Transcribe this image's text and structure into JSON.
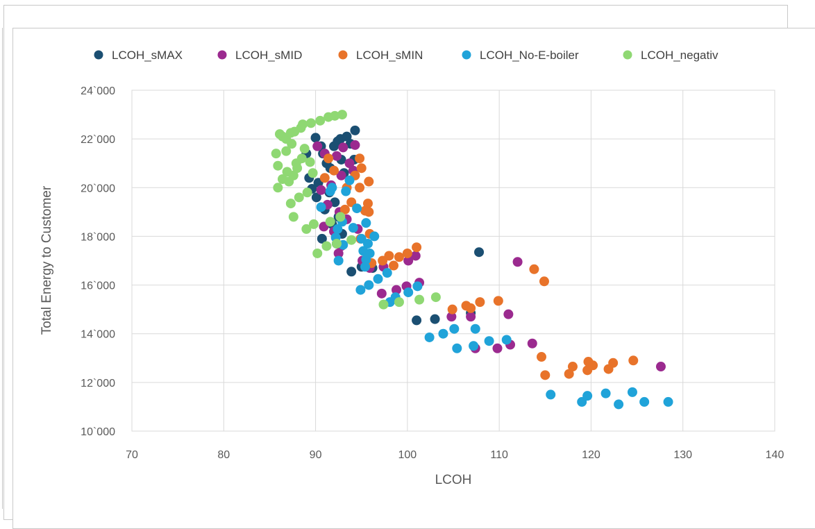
{
  "chart_data": {
    "type": "scatter",
    "xlabel": "LCOH",
    "ylabel": "Total Energy to Customer",
    "xlim": [
      70,
      140
    ],
    "ylim": [
      10000,
      24000
    ],
    "x_ticks": [
      {
        "value": 70,
        "label": "70"
      },
      {
        "value": 80,
        "label": "80"
      },
      {
        "value": 90,
        "label": "90"
      },
      {
        "value": 100,
        "label": "100"
      },
      {
        "value": 110,
        "label": "110"
      },
      {
        "value": 120,
        "label": "120"
      },
      {
        "value": 130,
        "label": "130"
      },
      {
        "value": 140,
        "label": "140"
      }
    ],
    "y_ticks": [
      {
        "value": 10000,
        "label": "10`000"
      },
      {
        "value": 12000,
        "label": "12`000"
      },
      {
        "value": 14000,
        "label": "14`000"
      },
      {
        "value": 16000,
        "label": "16`000"
      },
      {
        "value": 18000,
        "label": "18`000"
      },
      {
        "value": 20000,
        "label": "20`000"
      },
      {
        "value": 22000,
        "label": "22`000"
      },
      {
        "value": 24000,
        "label": "24`000"
      }
    ],
    "grid": true,
    "legend_position": "top",
    "series": [
      {
        "name": "LCOH_sMAX",
        "color": "#1b4f72",
        "points": [
          [
            89.0,
            21400
          ],
          [
            89.3,
            20400
          ],
          [
            90.0,
            22050
          ],
          [
            90.6,
            21700
          ],
          [
            90.8,
            21400
          ],
          [
            91.2,
            21000
          ],
          [
            91.6,
            20800
          ],
          [
            92.0,
            21700
          ],
          [
            92.4,
            21900
          ],
          [
            92.7,
            22000
          ],
          [
            93.4,
            22100
          ],
          [
            94.3,
            22350
          ],
          [
            92.8,
            21150
          ],
          [
            93.1,
            20600
          ],
          [
            93.8,
            21800
          ],
          [
            94.2,
            21150
          ],
          [
            90.3,
            20200
          ],
          [
            91.5,
            19800
          ],
          [
            92.1,
            19400
          ],
          [
            89.6,
            19950
          ],
          [
            90.1,
            19600
          ],
          [
            91.0,
            19100
          ],
          [
            92.5,
            18800
          ],
          [
            91.8,
            18500
          ],
          [
            92.9,
            18100
          ],
          [
            90.7,
            17900
          ],
          [
            92.3,
            17700
          ],
          [
            93.9,
            16550
          ],
          [
            95.0,
            16750
          ],
          [
            95.8,
            16900
          ],
          [
            96.2,
            16700
          ],
          [
            101.0,
            14550
          ],
          [
            103.0,
            14600
          ],
          [
            106.9,
            14850
          ],
          [
            107.8,
            17350
          ]
        ]
      },
      {
        "name": "LCOH_sMID",
        "color": "#9b2a8f",
        "points": [
          [
            90.2,
            21700
          ],
          [
            91.0,
            21400
          ],
          [
            92.3,
            21300
          ],
          [
            93.0,
            21650
          ],
          [
            94.3,
            21750
          ],
          [
            93.7,
            21000
          ],
          [
            94.1,
            20700
          ],
          [
            92.8,
            20500
          ],
          [
            91.7,
            20100
          ],
          [
            90.6,
            19900
          ],
          [
            91.3,
            19300
          ],
          [
            92.6,
            19000
          ],
          [
            93.4,
            18700
          ],
          [
            94.6,
            18300
          ],
          [
            92.0,
            18200
          ],
          [
            90.9,
            18400
          ],
          [
            92.8,
            17600
          ],
          [
            92.5,
            17300
          ],
          [
            95.1,
            17000
          ],
          [
            95.9,
            16700
          ],
          [
            97.4,
            16750
          ],
          [
            97.2,
            15650
          ],
          [
            98.8,
            15800
          ],
          [
            99.9,
            15950
          ],
          [
            100.1,
            17000
          ],
          [
            100.9,
            17200
          ],
          [
            101.3,
            16100
          ],
          [
            104.8,
            14700
          ],
          [
            106.9,
            14700
          ],
          [
            107.4,
            13400
          ],
          [
            109.8,
            13400
          ],
          [
            111.0,
            14800
          ],
          [
            111.2,
            13550
          ],
          [
            112.0,
            16950
          ],
          [
            113.6,
            13600
          ],
          [
            127.6,
            12650
          ]
        ]
      },
      {
        "name": "LCOH_sMIN",
        "color": "#e8732a",
        "points": [
          [
            91.0,
            20400
          ],
          [
            91.4,
            21200
          ],
          [
            92.0,
            20700
          ],
          [
            93.4,
            20000
          ],
          [
            94.3,
            20500
          ],
          [
            94.8,
            21200
          ],
          [
            95.0,
            20800
          ],
          [
            95.8,
            20250
          ],
          [
            94.8,
            20000
          ],
          [
            93.9,
            19400
          ],
          [
            93.2,
            19100
          ],
          [
            95.7,
            19350
          ],
          [
            95.4,
            19050
          ],
          [
            95.8,
            19000
          ],
          [
            95.9,
            18100
          ],
          [
            94.9,
            17900
          ],
          [
            96.1,
            16900
          ],
          [
            97.3,
            17000
          ],
          [
            98.0,
            17200
          ],
          [
            98.5,
            16800
          ],
          [
            99.1,
            17150
          ],
          [
            100.0,
            17300
          ],
          [
            101.0,
            17550
          ],
          [
            104.9,
            15000
          ],
          [
            106.4,
            15150
          ],
          [
            106.9,
            15050
          ],
          [
            107.9,
            15300
          ],
          [
            109.9,
            15350
          ],
          [
            113.8,
            16650
          ],
          [
            114.9,
            16150
          ],
          [
            114.6,
            13050
          ],
          [
            115.0,
            12300
          ],
          [
            117.6,
            12350
          ],
          [
            118.0,
            12650
          ],
          [
            119.6,
            12500
          ],
          [
            119.7,
            12850
          ],
          [
            120.2,
            12700
          ],
          [
            121.9,
            12550
          ],
          [
            122.4,
            12800
          ],
          [
            124.6,
            12900
          ]
        ]
      },
      {
        "name": "LCOH_No-E-boiler",
        "color": "#20a3d9",
        "points": [
          [
            90.6,
            19200
          ],
          [
            91.6,
            19850
          ],
          [
            91.8,
            20000
          ],
          [
            92.4,
            18300
          ],
          [
            92.9,
            18600
          ],
          [
            92.2,
            17950
          ],
          [
            93.0,
            17650
          ],
          [
            93.3,
            19850
          ],
          [
            93.7,
            20300
          ],
          [
            94.1,
            18350
          ],
          [
            94.5,
            19150
          ],
          [
            95.0,
            17900
          ],
          [
            95.2,
            17400
          ],
          [
            95.5,
            17050
          ],
          [
            95.7,
            17700
          ],
          [
            95.4,
            16750
          ],
          [
            95.9,
            17300
          ],
          [
            95.5,
            18550
          ],
          [
            96.4,
            18000
          ],
          [
            92.5,
            17000
          ],
          [
            94.9,
            15800
          ],
          [
            95.8,
            16000
          ],
          [
            96.8,
            16250
          ],
          [
            97.8,
            16500
          ],
          [
            98.1,
            15300
          ],
          [
            98.7,
            15500
          ],
          [
            100.1,
            15700
          ],
          [
            101.1,
            15950
          ],
          [
            102.4,
            13850
          ],
          [
            103.9,
            14000
          ],
          [
            105.1,
            14200
          ],
          [
            105.4,
            13400
          ],
          [
            107.2,
            13500
          ],
          [
            107.4,
            14200
          ],
          [
            108.9,
            13700
          ],
          [
            110.8,
            13750
          ],
          [
            115.6,
            11500
          ],
          [
            119.0,
            11200
          ],
          [
            119.6,
            11450
          ],
          [
            121.6,
            11550
          ],
          [
            123.0,
            11100
          ],
          [
            124.5,
            11600
          ],
          [
            125.8,
            11200
          ],
          [
            128.4,
            11200
          ]
        ]
      },
      {
        "name": "LCOH_negativ",
        "color": "#8fd873",
        "points": [
          [
            85.7,
            21400
          ],
          [
            85.9,
            20900
          ],
          [
            86.1,
            22200
          ],
          [
            86.4,
            22100
          ],
          [
            86.8,
            22000
          ],
          [
            87.3,
            22250
          ],
          [
            87.7,
            22300
          ],
          [
            88.4,
            22450
          ],
          [
            88.6,
            22600
          ],
          [
            89.5,
            22650
          ],
          [
            90.5,
            22750
          ],
          [
            91.4,
            22900
          ],
          [
            92.1,
            22950
          ],
          [
            92.9,
            23000
          ],
          [
            85.9,
            20000
          ],
          [
            86.4,
            20350
          ],
          [
            86.8,
            21500
          ],
          [
            86.9,
            20650
          ],
          [
            87.1,
            20250
          ],
          [
            87.3,
            19350
          ],
          [
            87.4,
            21800
          ],
          [
            87.6,
            20500
          ],
          [
            87.9,
            21000
          ],
          [
            88.0,
            20800
          ],
          [
            88.2,
            19600
          ],
          [
            88.5,
            21200
          ],
          [
            88.8,
            21600
          ],
          [
            89.4,
            21050
          ],
          [
            89.1,
            19800
          ],
          [
            89.7,
            20600
          ],
          [
            87.6,
            18800
          ],
          [
            89.0,
            18300
          ],
          [
            89.8,
            18500
          ],
          [
            90.2,
            17300
          ],
          [
            91.2,
            17600
          ],
          [
            91.6,
            18600
          ],
          [
            92.3,
            17700
          ],
          [
            92.7,
            18800
          ],
          [
            93.9,
            17850
          ],
          [
            97.4,
            15200
          ],
          [
            99.1,
            15300
          ],
          [
            101.3,
            15400
          ],
          [
            103.1,
            15500
          ]
        ]
      }
    ]
  }
}
